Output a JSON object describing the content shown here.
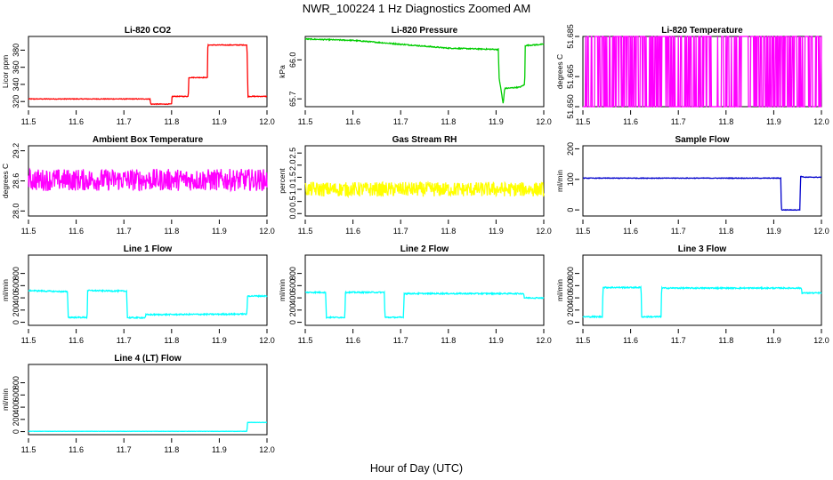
{
  "figure": {
    "title": "NWR_100224  1 Hz Diagnostics Zoomed AM",
    "xlabel": "Hour of Day (UTC)"
  },
  "chart_data": [
    {
      "type": "line",
      "title": "Li-820 CO2",
      "ylabel": "Licor ppm",
      "color": "#ff0000",
      "xlim": [
        11.5,
        12.0
      ],
      "ylim": [
        314,
        396
      ],
      "xticks": [
        "11.5",
        "11.6",
        "11.7",
        "11.8",
        "11.9",
        "12.0"
      ],
      "yticks": [
        "320",
        "340",
        "360",
        "380"
      ],
      "x": [
        11.5,
        11.755,
        11.756,
        11.8,
        11.801,
        11.835,
        11.836,
        11.875,
        11.876,
        11.958,
        11.96,
        12.0
      ],
      "y": [
        323,
        323,
        317,
        317,
        326,
        326,
        348,
        348,
        386,
        386,
        326,
        326
      ],
      "noise": 0.4
    },
    {
      "type": "line",
      "title": "Li-820 Pressure",
      "ylabel": "kPa",
      "color": "#00cc00",
      "xlim": [
        11.5,
        12.0
      ],
      "ylim": [
        65.64,
        66.18
      ],
      "xticks": [
        "11.5",
        "11.6",
        "11.7",
        "11.8",
        "11.9",
        "12.0"
      ],
      "yticks": [
        "65.7",
        "66.0"
      ],
      "x": [
        11.5,
        11.6,
        11.7,
        11.8,
        11.905,
        11.906,
        11.915,
        11.918,
        11.95,
        11.96,
        11.961,
        12.0
      ],
      "y": [
        66.16,
        66.15,
        66.12,
        66.09,
        66.08,
        65.87,
        65.66,
        65.78,
        65.79,
        65.81,
        66.11,
        66.12
      ],
      "noise": 0.004
    },
    {
      "type": "line",
      "title": "Li-820 Temperature",
      "ylabel": "degrees C",
      "color": "#ff00ff",
      "xlim": [
        11.5,
        12.0
      ],
      "ylim": [
        51.65,
        51.685
      ],
      "xticks": [
        "11.5",
        "11.6",
        "11.7",
        "11.8",
        "11.9",
        "12.0"
      ],
      "yticks": [
        "51.650",
        "51.665",
        "51.685"
      ],
      "mode": "toggle",
      "low": 51.65,
      "high": 51.685,
      "noise": 0
    },
    {
      "type": "line",
      "title": "Ambient Box Temperature",
      "ylabel": "degrees C",
      "color": "#ff00ff",
      "xlim": [
        11.5,
        12.0
      ],
      "ylim": [
        27.9,
        29.3
      ],
      "xticks": [
        "11.5",
        "11.6",
        "11.7",
        "11.8",
        "11.9",
        "12.0"
      ],
      "yticks": [
        "28.0",
        "28.6",
        "29.2"
      ],
      "x": [
        11.5,
        12.0
      ],
      "y": [
        28.62,
        28.62
      ],
      "noise": 0.22
    },
    {
      "type": "line",
      "title": "Gas Stream RH",
      "ylabel": "percent",
      "color": "#ffff00",
      "xlim": [
        11.5,
        12.0
      ],
      "ylim": [
        -0.1,
        2.8
      ],
      "xticks": [
        "11.5",
        "11.6",
        "11.7",
        "11.8",
        "11.9",
        "12.0"
      ],
      "yticks": [
        "0.0",
        "0.5",
        "1.0",
        "1.5",
        "2.0",
        "2.5"
      ],
      "x": [
        11.5,
        12.0
      ],
      "y": [
        1.0,
        1.0
      ],
      "noise": 0.3
    },
    {
      "type": "line",
      "title": "Sample Flow",
      "ylabel": "ml/min",
      "color": "#0000cc",
      "xlim": [
        11.5,
        12.0
      ],
      "ylim": [
        -20,
        210
      ],
      "xticks": [
        "11.5",
        "11.6",
        "11.7",
        "11.8",
        "11.9",
        "12.0"
      ],
      "yticks": [
        "0",
        "100",
        "200"
      ],
      "x": [
        11.5,
        11.915,
        11.916,
        11.955,
        11.956,
        11.965,
        12.0
      ],
      "y": [
        104,
        104,
        0,
        0,
        110,
        107,
        107
      ],
      "noise": 1
    },
    {
      "type": "line",
      "title": "Line 1 Flow",
      "ylabel": "ml/min",
      "color": "#00ffff",
      "xlim": [
        11.5,
        12.0
      ],
      "ylim": [
        -50,
        1100
      ],
      "xticks": [
        "11.5",
        "11.6",
        "11.7",
        "11.8",
        "11.9",
        "12.0"
      ],
      "yticks": [
        "0",
        "200",
        "400",
        "600",
        "800"
      ],
      "x": [
        11.5,
        11.582,
        11.583,
        11.623,
        11.624,
        11.706,
        11.707,
        11.745,
        11.746,
        11.958,
        11.959,
        12.0
      ],
      "y": [
        520,
        500,
        80,
        80,
        520,
        510,
        75,
        75,
        125,
        135,
        430,
        430
      ],
      "noise": 10
    },
    {
      "type": "line",
      "title": "Line 2 Flow",
      "ylabel": "ml/min",
      "color": "#00ffff",
      "xlim": [
        11.5,
        12.0
      ],
      "ylim": [
        -50,
        1100
      ],
      "xticks": [
        "11.5",
        "11.6",
        "11.7",
        "11.8",
        "11.9",
        "12.0"
      ],
      "yticks": [
        "0",
        "200",
        "400",
        "600",
        "800"
      ],
      "x": [
        11.5,
        11.543,
        11.544,
        11.583,
        11.584,
        11.666,
        11.667,
        11.706,
        11.707,
        11.958,
        11.959,
        12.0
      ],
      "y": [
        490,
        490,
        80,
        80,
        490,
        490,
        80,
        80,
        470,
        470,
        400,
        400
      ],
      "noise": 10
    },
    {
      "type": "line",
      "title": "Line 3 Flow",
      "ylabel": "ml/min",
      "color": "#00ffff",
      "xlim": [
        11.5,
        12.0
      ],
      "ylim": [
        -50,
        1100
      ],
      "xticks": [
        "11.5",
        "11.6",
        "11.7",
        "11.8",
        "11.9",
        "12.0"
      ],
      "yticks": [
        "0",
        "200",
        "400",
        "600",
        "800"
      ],
      "x": [
        11.5,
        11.541,
        11.542,
        11.622,
        11.623,
        11.664,
        11.665,
        11.958,
        11.959,
        12.0
      ],
      "y": [
        90,
        90,
        570,
        570,
        90,
        90,
        560,
        560,
        480,
        480
      ],
      "noise": 10
    },
    {
      "type": "line",
      "title": "Line 4 (LT) Flow",
      "ylabel": "ml/min",
      "color": "#00ffff",
      "xlim": [
        11.5,
        12.0
      ],
      "ylim": [
        -50,
        1100
      ],
      "xticks": [
        "11.5",
        "11.6",
        "11.7",
        "11.8",
        "11.9",
        "12.0"
      ],
      "yticks": [
        "0",
        "200",
        "400",
        "600",
        "800"
      ],
      "x": [
        11.5,
        11.958,
        11.959,
        12.0
      ],
      "y": [
        5,
        5,
        150,
        150
      ],
      "noise": 2
    }
  ]
}
